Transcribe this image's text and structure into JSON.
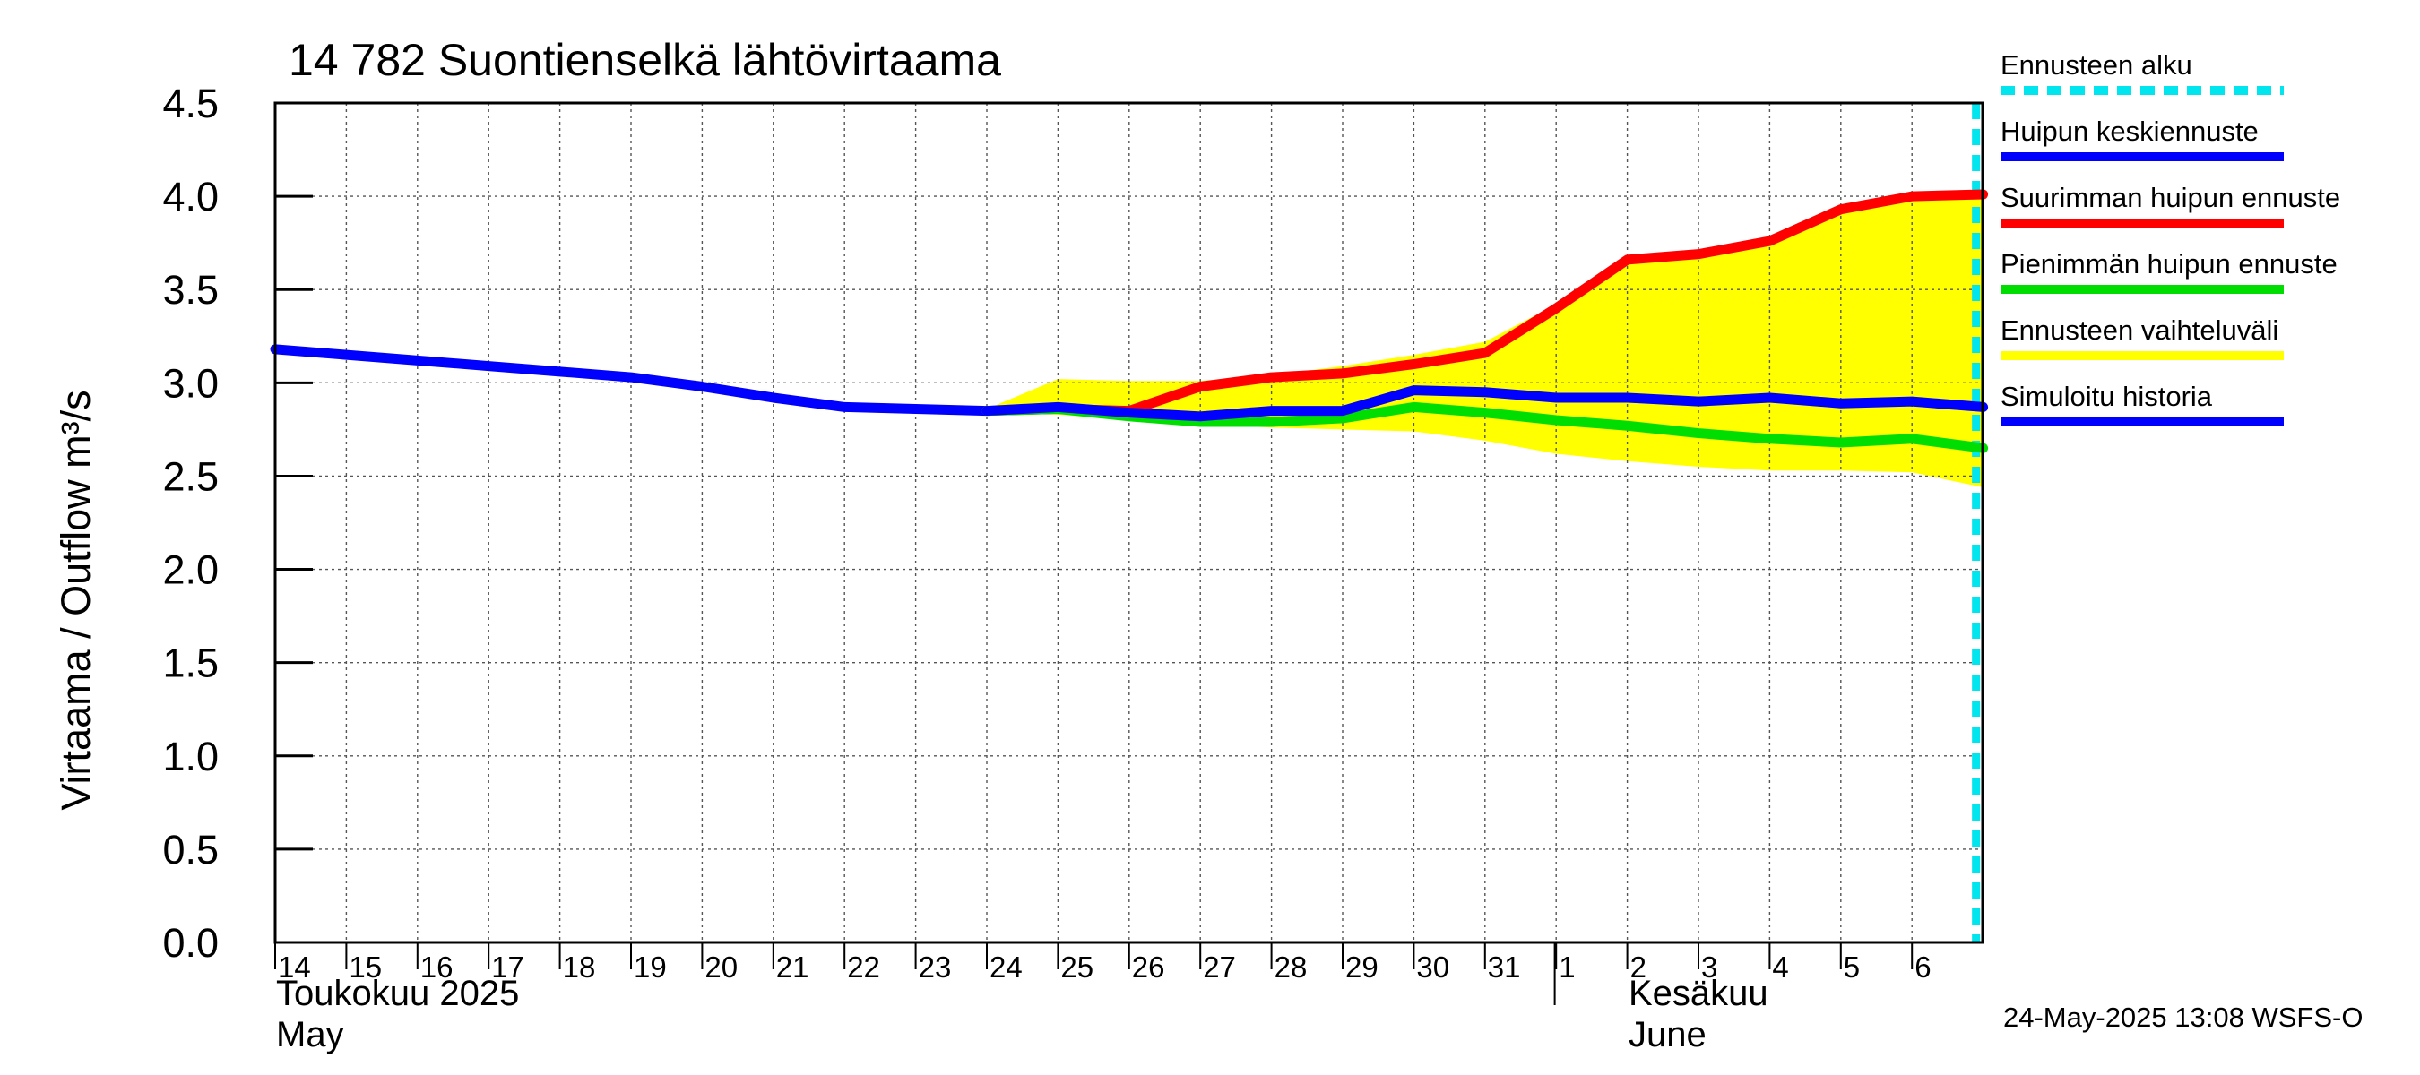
{
  "chart_data": {
    "type": "line",
    "title": "14 782 Suontienselkä lähtövirtaama",
    "ylabel": "Virtaama / Outflow    m³/s",
    "ylim": [
      0,
      4.5
    ],
    "yticks": [
      "0.0",
      "0.5",
      "1.0",
      "1.5",
      "2.0",
      "2.5",
      "3.0",
      "3.5",
      "4.0",
      "4.5"
    ],
    "x_days": [
      "14",
      "15",
      "16",
      "17",
      "18",
      "19",
      "20",
      "21",
      "22",
      "23",
      "24",
      "25",
      "26",
      "27",
      "28",
      "29",
      "30",
      "31",
      "1",
      "2",
      "3",
      "4",
      "5",
      "6"
    ],
    "month_labels": {
      "may_fi": "Toukokuu  2025",
      "may_en": "May",
      "june_fi": "Kesäkuu",
      "june_en": "June"
    },
    "forecast_start_day": 23.9,
    "series": [
      {
        "name": "Simuloitu historia",
        "color": "#0000ff",
        "x": [
          0,
          1,
          2,
          3,
          4,
          5,
          6,
          7,
          8,
          9,
          10
        ],
        "values": [
          3.18,
          3.15,
          3.12,
          3.09,
          3.06,
          3.03,
          2.98,
          2.92,
          2.87,
          2.86,
          2.85
        ]
      },
      {
        "name": "Suurimman huipun ennuste",
        "color": "#ff0000",
        "x": [
          10,
          11,
          12,
          13,
          14,
          15,
          16,
          17,
          18,
          19,
          20,
          21,
          22,
          23,
          24
        ],
        "values": [
          2.85,
          2.86,
          2.85,
          2.98,
          3.03,
          3.05,
          3.1,
          3.16,
          3.4,
          3.66,
          3.69,
          3.76,
          3.93,
          4.0,
          4.01
        ]
      },
      {
        "name": "Pienimmän huipun ennuste",
        "color": "#00dd00",
        "x": [
          10,
          11,
          12,
          13,
          14,
          15,
          16,
          17,
          18,
          19,
          20,
          21,
          22,
          23,
          24
        ],
        "values": [
          2.85,
          2.86,
          2.82,
          2.79,
          2.79,
          2.81,
          2.87,
          2.84,
          2.8,
          2.77,
          2.73,
          2.7,
          2.68,
          2.7,
          2.65
        ]
      },
      {
        "name": "Huipun keskiennuste",
        "color": "#0000ff",
        "x": [
          10,
          11,
          12,
          13,
          14,
          15,
          16,
          17,
          18,
          19,
          20,
          21,
          22,
          23,
          24
        ],
        "values": [
          2.85,
          2.87,
          2.84,
          2.82,
          2.85,
          2.85,
          2.96,
          2.95,
          2.92,
          2.92,
          2.9,
          2.92,
          2.89,
          2.9,
          2.87
        ]
      }
    ],
    "band": {
      "name": "Ennusteen vaihteluväli",
      "color": "#ffff00",
      "x": [
        10,
        11,
        12,
        13,
        14,
        15,
        16,
        17,
        18,
        19,
        20,
        21,
        22,
        23,
        24
      ],
      "upper": [
        2.86,
        3.02,
        3.01,
        3.01,
        3.04,
        3.09,
        3.15,
        3.22,
        3.42,
        3.66,
        3.69,
        3.77,
        3.94,
        4.0,
        4.01
      ],
      "lower": [
        2.84,
        2.83,
        2.8,
        2.78,
        2.76,
        2.75,
        2.74,
        2.69,
        2.62,
        2.58,
        2.55,
        2.53,
        2.53,
        2.52,
        2.44
      ]
    },
    "legend": [
      {
        "label": "Ennusteen alku",
        "color": "#00e5ee",
        "style": "dashed"
      },
      {
        "label": "Huipun keskiennuste",
        "color": "#0000ff",
        "style": "solid"
      },
      {
        "label": "Suurimman huipun ennuste",
        "color": "#ff0000",
        "style": "solid"
      },
      {
        "label": "Pienimmän huipun ennuste",
        "color": "#00dd00",
        "style": "solid"
      },
      {
        "label": "Ennusteen vaihteluväli",
        "color": "#ffff00",
        "style": "solid"
      },
      {
        "label": "Simuloitu historia",
        "color": "#0000ff",
        "style": "solid"
      }
    ],
    "footer": "24-May-2025 13:08 WSFS-O"
  }
}
